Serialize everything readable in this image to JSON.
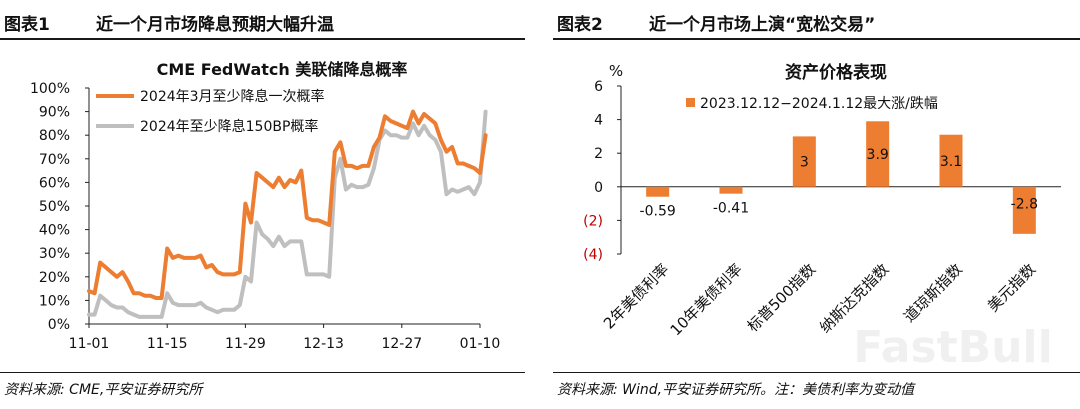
{
  "panel1": {
    "fig_no": "图表1",
    "fig_title": "近一个月市场降息预期大幅升温",
    "source": "资料来源: CME,平安证券研究所"
  },
  "panel2": {
    "fig_no": "图表2",
    "fig_title": "近一个月市场上演“宽松交易”",
    "source": "资料来源: Wind,平安证券研究所。注：美债利率为变动值"
  },
  "colors": {
    "orange": "#ED7D31",
    "gray": "#BFBFBF",
    "red": "#C00000"
  },
  "watermark": "FastBull",
  "chart_data": [
    {
      "type": "line",
      "title": "CME FedWatch 美联储降息概率",
      "x_tick_labels": [
        "11-01",
        "11-15",
        "11-29",
        "12-13",
        "12-27",
        "01-10"
      ],
      "x_tick_days": [
        0,
        14,
        28,
        42,
        56,
        70
      ],
      "y_tick_labels": [
        "0%",
        "10%",
        "20%",
        "30%",
        "40%",
        "50%",
        "60%",
        "70%",
        "80%",
        "90%",
        "100%"
      ],
      "ylim": [
        0,
        100
      ],
      "grid": false,
      "legend": "top-left",
      "series": [
        {
          "name": "2024年3月至少降息一次概率",
          "color": "#ED7D31",
          "x": [
            0,
            1,
            2,
            3,
            4,
            5,
            6,
            7,
            8,
            9,
            10,
            11,
            12,
            13,
            14,
            15,
            16,
            17,
            18,
            19,
            20,
            21,
            22,
            23,
            24,
            25,
            26,
            27,
            28,
            29,
            30,
            31,
            32,
            33,
            34,
            35,
            36,
            37,
            38,
            39,
            40,
            41,
            42,
            43,
            44,
            45,
            46,
            47,
            48,
            49,
            50,
            51,
            52,
            53,
            54,
            55,
            56,
            57,
            58,
            59,
            60,
            61,
            62,
            63,
            64,
            65,
            66,
            67,
            68,
            69,
            70,
            71
          ],
          "y": [
            14,
            13,
            26,
            24,
            22,
            20,
            22,
            18,
            13,
            13,
            12,
            12,
            11,
            11,
            32,
            28,
            29,
            28,
            28,
            28,
            29,
            24,
            25,
            22,
            21,
            21,
            21,
            22,
            51,
            43,
            64,
            62,
            60,
            58,
            62,
            58,
            61,
            60,
            65,
            45,
            44,
            44,
            43,
            42,
            73,
            77,
            67,
            67,
            66,
            67,
            67,
            75,
            79,
            88,
            86,
            85,
            84,
            83,
            90,
            85,
            89,
            87,
            85,
            78,
            73,
            75,
            68,
            68,
            67,
            66,
            64,
            80
          ]
        },
        {
          "name": "2024年至少降息150BP概率",
          "color": "#BFBFBF",
          "x": [
            0,
            1,
            2,
            3,
            4,
            5,
            6,
            7,
            8,
            9,
            10,
            11,
            12,
            13,
            14,
            15,
            16,
            17,
            18,
            19,
            20,
            21,
            22,
            23,
            24,
            25,
            26,
            27,
            28,
            29,
            30,
            31,
            32,
            33,
            34,
            35,
            36,
            37,
            38,
            39,
            40,
            41,
            42,
            43,
            44,
            45,
            46,
            47,
            48,
            49,
            50,
            51,
            52,
            53,
            54,
            55,
            56,
            57,
            58,
            59,
            60,
            61,
            62,
            63,
            64,
            65,
            66,
            67,
            68,
            69,
            70,
            71
          ],
          "y": [
            4,
            4,
            12,
            10,
            8,
            7,
            7,
            5,
            4,
            3,
            3,
            3,
            3,
            3,
            13,
            9,
            8,
            8,
            8,
            8,
            9,
            7,
            6,
            5,
            6,
            6,
            6,
            8,
            20,
            18,
            43,
            38,
            36,
            33,
            37,
            33,
            35,
            35,
            35,
            21,
            21,
            21,
            21,
            20,
            62,
            70,
            57,
            59,
            58,
            58,
            59,
            66,
            78,
            82,
            80,
            80,
            79,
            79,
            85,
            80,
            84,
            80,
            78,
            73,
            55,
            57,
            56,
            57,
            58,
            55,
            60,
            90
          ]
        }
      ]
    },
    {
      "type": "bar",
      "title": "资产价格表现",
      "unit_label": "%",
      "legend": "top",
      "series": [
        {
          "name": "2023.12.12−2024.1.12最大涨/跌幅",
          "color": "#ED7D31",
          "values": [
            -0.59,
            -0.41,
            3,
            3.9,
            3.1,
            -2.8
          ],
          "value_labels": [
            "-0.59",
            "-0.41",
            "3",
            "3.9",
            "3.1",
            "-2.8"
          ]
        }
      ],
      "categories": [
        "2年美债利率",
        "10年美债利率",
        "标普500指数",
        "纳斯达克指数",
        "道琼斯指数",
        "美元指数"
      ],
      "y_tick_labels": [
        "6",
        "4",
        "2",
        "0",
        "(2)",
        "(4)"
      ],
      "y_tick_values": [
        6,
        4,
        2,
        0,
        -2,
        -4
      ],
      "ylim": [
        -4,
        6
      ]
    }
  ]
}
